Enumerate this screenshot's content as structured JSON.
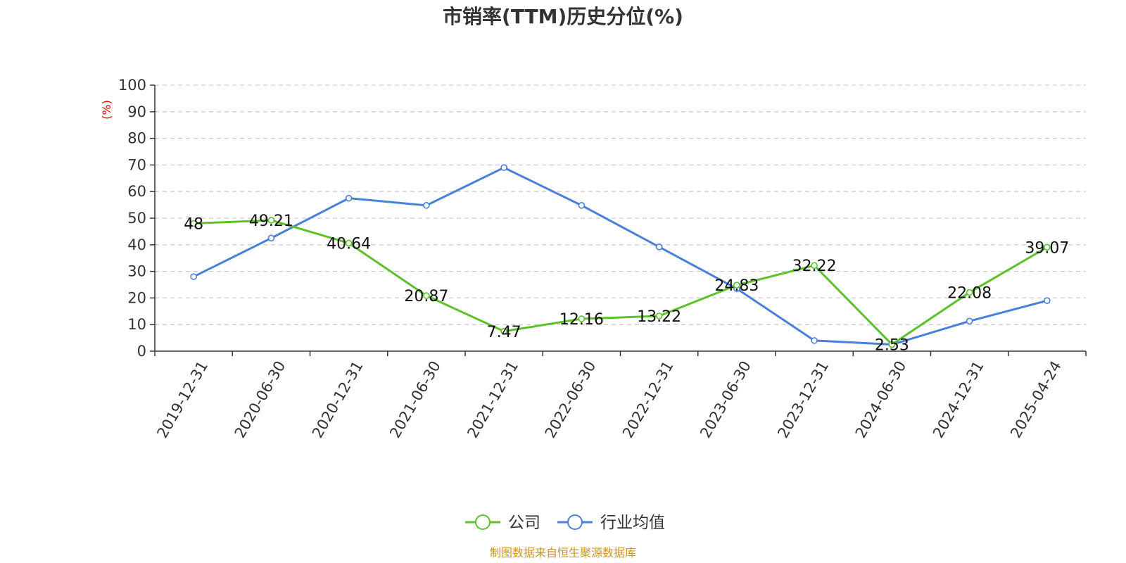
{
  "chart_data": {
    "type": "line",
    "title": "市销率(TTM)历史分位(%)",
    "ylabel": "(%)",
    "xlabel": "",
    "ylim": [
      0,
      100
    ],
    "yticks": [
      0,
      10,
      20,
      30,
      40,
      50,
      60,
      70,
      80,
      90,
      100
    ],
    "grid": true,
    "legend_position": "bottom",
    "categories": [
      "2019-12-31",
      "2020-06-30",
      "2020-12-31",
      "2021-06-30",
      "2021-12-31",
      "2022-06-30",
      "2022-12-31",
      "2023-06-30",
      "2023-12-31",
      "2024-06-30",
      "2024-12-31",
      "2025-04-24"
    ],
    "series": [
      {
        "name": "公司",
        "color": "#5cc22a",
        "values": [
          48,
          49.21,
          40.64,
          20.87,
          7.47,
          12.16,
          13.22,
          24.83,
          32.22,
          2.53,
          22.08,
          39.07
        ],
        "labels": [
          "48",
          "49.21",
          "40.64",
          "20.87",
          "7.47",
          "12.16",
          "13.22",
          "24.83",
          "32.22",
          "2.53",
          "22.08",
          "39.07"
        ]
      },
      {
        "name": "行业均值",
        "color": "#4a7fdb",
        "values": [
          28,
          42.5,
          57.5,
          54.8,
          69,
          54.8,
          39.2,
          23.5,
          4,
          2.5,
          11.3,
          19
        ]
      }
    ],
    "source": "制图数据来自恒生聚源数据库",
    "colors": {
      "axis": "#333333",
      "grid": "#cccccc",
      "unit": "#e00000",
      "source": "#c8961e"
    }
  }
}
